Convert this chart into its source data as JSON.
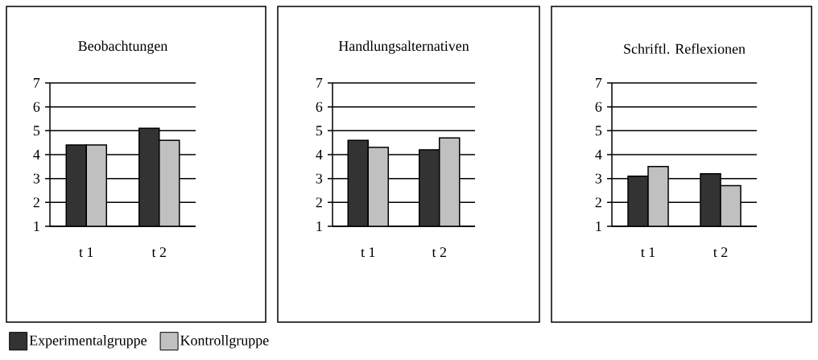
{
  "chart_data": [
    {
      "type": "bar",
      "title": "Beobachtungen",
      "categories": [
        "t 1",
        "t 2"
      ],
      "series": [
        {
          "name": "Experimentalgruppe",
          "color": "#333333",
          "values": [
            4.4,
            5.1
          ]
        },
        {
          "name": "Kontrollgruppe",
          "color": "#c0c0c0",
          "values": [
            4.4,
            4.6
          ]
        }
      ],
      "ylim": [
        1,
        7
      ],
      "yticks": [
        1,
        2,
        3,
        4,
        5,
        6,
        7
      ],
      "grid": "y",
      "legend": "bottom"
    },
    {
      "type": "bar",
      "title": "Handlungsalternativen",
      "categories": [
        "t 1",
        "t 2"
      ],
      "series": [
        {
          "color": "#333333",
          "values": [
            4.6,
            4.2
          ]
        },
        {
          "color": "#c0c0c0",
          "values": [
            4.3,
            4.7
          ]
        }
      ],
      "ylim": [
        1,
        7
      ],
      "yticks": [
        1,
        2,
        3,
        4,
        5,
        6,
        7
      ],
      "grid": "y"
    },
    {
      "type": "bar",
      "title": "Schriftl.  Reflexionen",
      "categories": [
        "t 1",
        "t 2"
      ],
      "series": [
        {
          "color": "#333333",
          "values": [
            3.1,
            3.2
          ]
        },
        {
          "color": "#c0c0c0",
          "values": [
            3.5,
            2.7
          ]
        }
      ],
      "ylim": [
        1,
        7
      ],
      "yticks": [
        1,
        2,
        3,
        4,
        5,
        6,
        7
      ],
      "grid": "y"
    }
  ]
}
